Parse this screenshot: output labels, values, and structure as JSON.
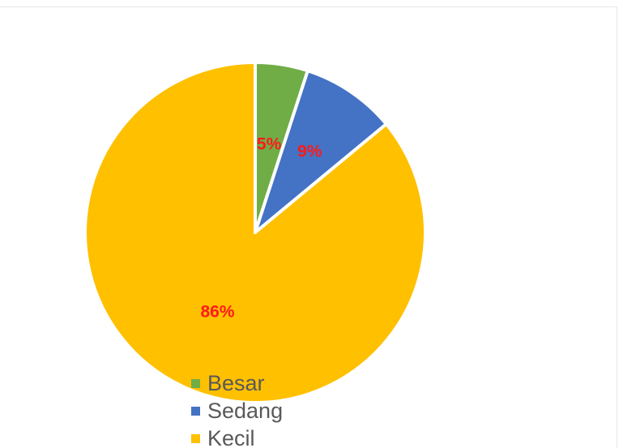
{
  "chart_data": {
    "type": "pie",
    "title": "",
    "slices": [
      {
        "label": "Besar",
        "value": 5,
        "display": "5%",
        "color": "#70ad47"
      },
      {
        "label": "Sedang",
        "value": 9,
        "display": "9%",
        "color": "#4472c4"
      },
      {
        "label": "Kecil",
        "value": 86,
        "display": "86%",
        "color": "#ffc000"
      }
    ],
    "start_angle": "12 o'clock",
    "direction": "clockwise",
    "data_label_color": "#ff1a1a",
    "legend_placement": "bottom-center"
  }
}
